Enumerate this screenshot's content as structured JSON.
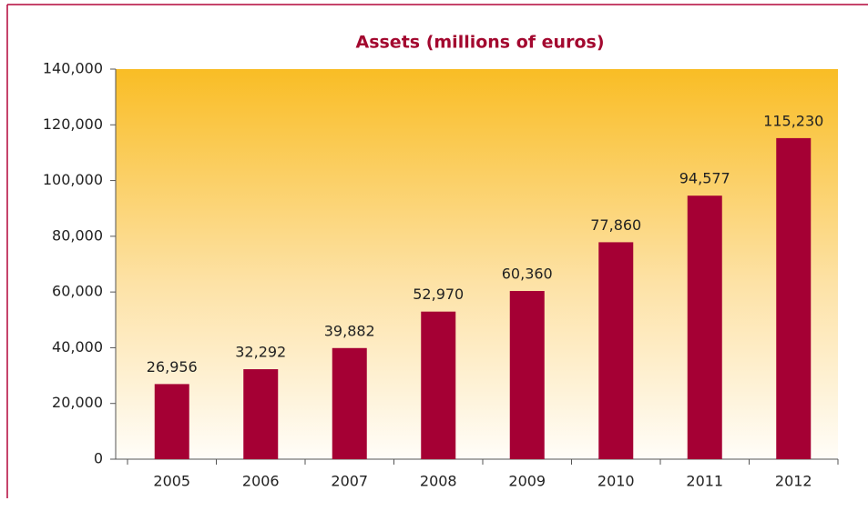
{
  "chart_data": {
    "type": "bar",
    "title": "Assets (millions of euros)",
    "categories": [
      "2005",
      "2006",
      "2007",
      "2008",
      "2009",
      "2010",
      "2011",
      "2012"
    ],
    "values": [
      26956,
      32292,
      39882,
      52970,
      60360,
      77860,
      94577,
      115230
    ],
    "value_labels": [
      "26,956",
      "32,292",
      "39,882",
      "52,970",
      "60,360",
      "77,860",
      "94,577",
      "115,230"
    ],
    "color": "#a50034",
    "ylim": [
      0,
      140000
    ],
    "yticks": [
      0,
      {
        "value": 20000,
        "label": "20,000"
      },
      {
        "value": 40000,
        "label": "40,000"
      },
      {
        "value": 60000,
        "label": "60,000"
      },
      {
        "value": 80000,
        "label": "80,000"
      },
      {
        "value": 100000,
        "label": "100,000"
      },
      {
        "value": 120000,
        "label": "120,000"
      },
      {
        "value": 140000,
        "label": "140,000"
      }
    ],
    "grid": false
  }
}
